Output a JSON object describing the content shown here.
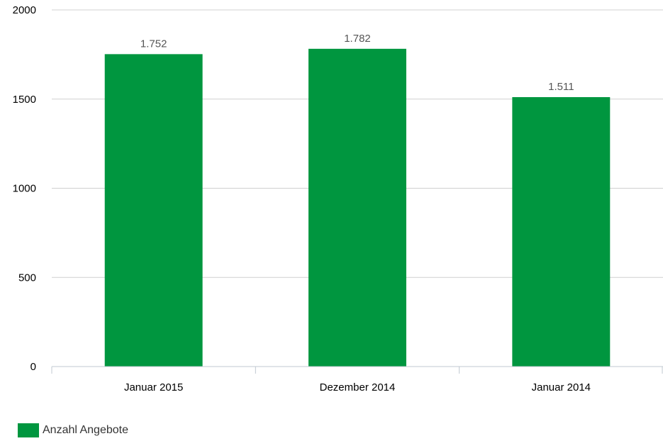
{
  "chart_data": {
    "type": "bar",
    "categories": [
      "Januar 2015",
      "Dezember 2014",
      "Januar 2014"
    ],
    "series": [
      {
        "name": "Anzahl Angebote",
        "values": [
          1752,
          1782,
          1511
        ],
        "value_labels": [
          "1.752",
          "1.782",
          "1.511"
        ],
        "color": "#00963f"
      }
    ],
    "y_ticks": [
      "0",
      "500",
      "1000",
      "1500",
      "2000"
    ],
    "ylim": [
      0,
      2000
    ],
    "grid": true,
    "legend_position": "bottom-left"
  },
  "colors": {
    "grid": "#d0d0d0",
    "axis_text": "#000000",
    "data_label": "#555555"
  }
}
